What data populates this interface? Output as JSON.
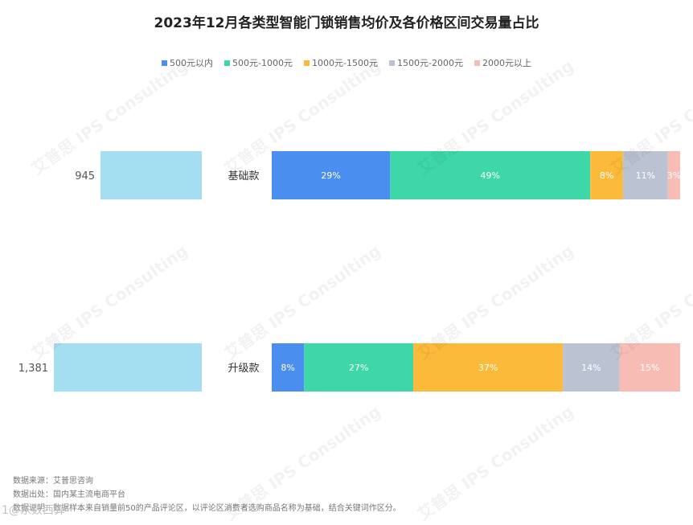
{
  "chart_data": {
    "type": "bar",
    "title": "2023年12月各类型智能门锁销售均价及各价格区间交易量占比",
    "categories": [
      "基础款",
      "升级款"
    ],
    "avg_price": {
      "values": [
        945,
        1381
      ],
      "labels": [
        "945",
        "1,381"
      ]
    },
    "stacked": true,
    "series": [
      {
        "name": "500元以内",
        "color": "#4A8FF0",
        "values": [
          29,
          8
        ],
        "labels": [
          "29%",
          "8%"
        ]
      },
      {
        "name": "500元-1000元",
        "color": "#3ED8A8",
        "values": [
          49,
          27
        ],
        "labels": [
          "49%",
          "27%"
        ]
      },
      {
        "name": "1000元-1500元",
        "color": "#FBBA3A",
        "values": [
          8,
          37
        ],
        "labels": [
          "8%",
          "37%"
        ]
      },
      {
        "name": "1500元-2000元",
        "color": "#BBC3D3",
        "values": [
          11,
          14
        ],
        "labels": [
          "11%",
          "14%"
        ]
      },
      {
        "name": "2000元以上",
        "color": "#F7BDB5",
        "values": [
          3,
          15
        ],
        "labels": [
          "3%",
          "15%"
        ]
      }
    ],
    "avg_bar_color": "#A3DFF1",
    "legend": "top"
  },
  "footnotes": [
    "数据来源：艾普思咨询",
    "数据出处：国内某主流电商平台",
    "数据说明：数据样本来自销量前50的产品评论区，以评论区消费者选购商品名称为基础，结合关键词作区分。"
  ],
  "watermark": "艾普思 IPS Consulting",
  "corner_mark": "1@东数西算"
}
